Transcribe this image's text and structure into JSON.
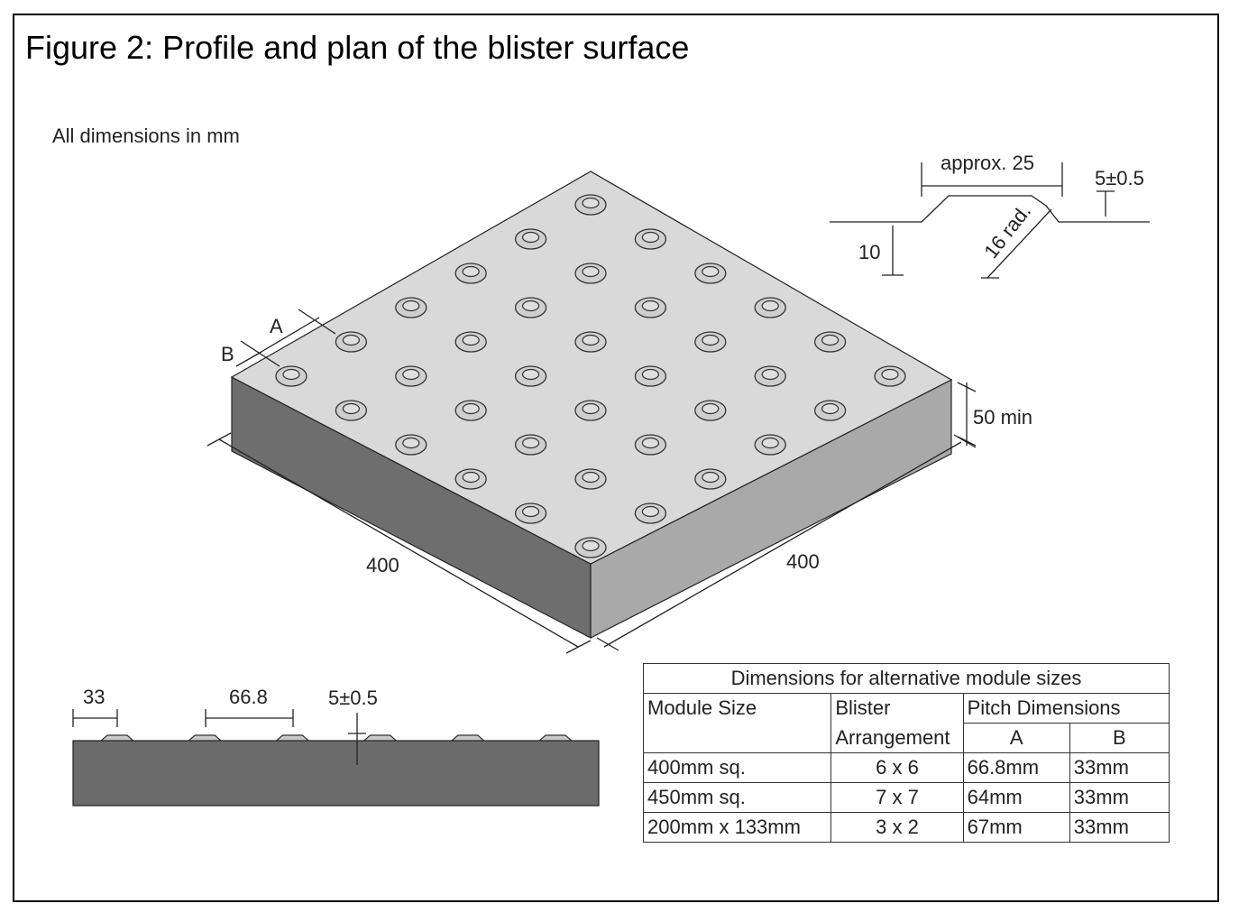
{
  "figure": {
    "title": "Figure 2: Profile and plan of the blister surface",
    "units_note": "All dimensions in mm"
  },
  "isometric_view": {
    "grid": "6 x 6",
    "labels": {
      "pitch_a": "A",
      "pitch_b": "B",
      "length_left": "400",
      "length_right": "400",
      "thickness": "50 min"
    }
  },
  "blister_profile": {
    "labels": {
      "top_width": "approx. 25",
      "height": "5±0.5",
      "base_height": "10",
      "radius": "16 rad."
    }
  },
  "side_profile": {
    "blister_count": 6,
    "labels": {
      "edge_offset": "33",
      "pitch": "66.8",
      "height": "5±0.5"
    }
  },
  "table": {
    "title": "Dimensions for alternative module sizes",
    "headers": {
      "module_size": "Module Size",
      "blister_line1": "Blister",
      "blister_line2": "Arrangement",
      "pitch": "Pitch Dimensions",
      "a": "A",
      "b": "B"
    },
    "rows": [
      {
        "module": "400mm sq.",
        "arrangement": "6 x 6",
        "a": "66.8mm",
        "b": "33mm"
      },
      {
        "module": "450mm sq.",
        "arrangement": "7 x 7",
        "a": "64mm",
        "b": "33mm"
      },
      {
        "module": "200mm x 133mm",
        "arrangement": "3 x 2",
        "a": "67mm",
        "b": "33mm"
      }
    ]
  },
  "colors": {
    "top_face": "#d9d9d9",
    "left_face": "#6e6e6e",
    "right_face": "#a9a9a9",
    "profile_slab": "#6b6b6b",
    "profile_blister": "#c8c8c8"
  }
}
